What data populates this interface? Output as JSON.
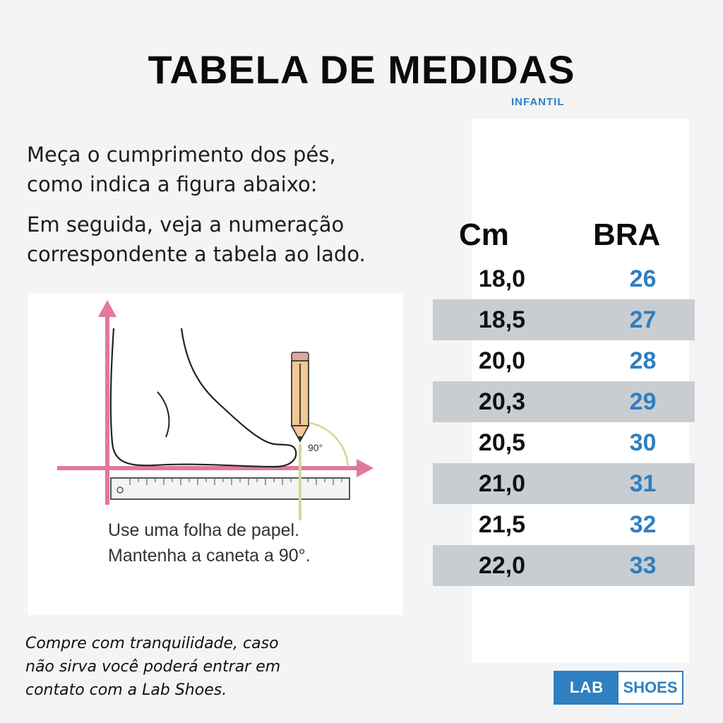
{
  "header": {
    "title": "TABELA DE MEDIDAS",
    "subtitle": "INFANTIL"
  },
  "instructions": {
    "line1": "Meça o cumprimento dos pés,",
    "line2": "como indica a figura abaixo:",
    "line3": "Em seguida, veja a numeração",
    "line4": "correspondente a tabela ao lado."
  },
  "illustration": {
    "angle": "90°",
    "caption1": "Use uma folha de papel.",
    "caption2": "Mantenha a caneta a 90°.",
    "colors": {
      "axis": "#e2789b",
      "pencil": "#f2c894",
      "guide": "#c9dd8f"
    }
  },
  "table": {
    "col_cm": "Cm",
    "col_bra": "BRA",
    "rows": [
      {
        "cm": "18,0",
        "bra": "26"
      },
      {
        "cm": "18,5",
        "bra": "27"
      },
      {
        "cm": "20,0",
        "bra": "28"
      },
      {
        "cm": "20,3",
        "bra": "29"
      },
      {
        "cm": "20,5",
        "bra": "30"
      },
      {
        "cm": "21,0",
        "bra": "31"
      },
      {
        "cm": "21,5",
        "bra": "32"
      },
      {
        "cm": "22,0",
        "bra": "33"
      }
    ]
  },
  "footer": {
    "line1": "Compre com tranquilidade, caso",
    "line2": "não sirva você poderá entrar em",
    "line3": "contato com a Lab Shoes."
  },
  "logo": {
    "left": "LAB",
    "right": "SHOES",
    "color": "#2f7fc1"
  }
}
